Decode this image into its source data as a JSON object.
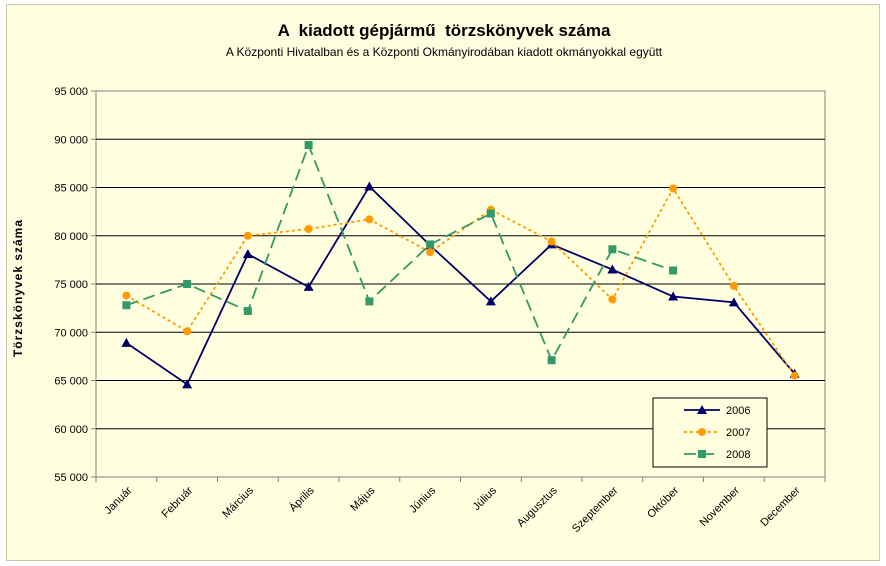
{
  "chart_data": {
    "type": "line",
    "title": "A  kiadott gépjármű  törzskönyvek száma",
    "subtitle": "A Központi Hivatalban és a Központi Okmányirodában kiadott okmányokkal együtt",
    "ylabel": "Törzskönyvek száma",
    "xlabel": "",
    "ylim": [
      55000,
      95000
    ],
    "yticks": [
      55000,
      60000,
      65000,
      70000,
      75000,
      80000,
      85000,
      90000,
      95000
    ],
    "ytick_labels": [
      "55 000",
      "60 000",
      "65 000",
      "70 000",
      "75 000",
      "80 000",
      "85 000",
      "90 000",
      "95 000"
    ],
    "categories": [
      "Január",
      "Február",
      "Március",
      "Április",
      "Május",
      "Június",
      "Július",
      "Augusztus",
      "Szeptember",
      "Október",
      "November",
      "December"
    ],
    "grid": "horizontal",
    "legend_position": "bottom-right",
    "series": [
      {
        "name": "2006",
        "color": "#000066",
        "dash": "solid",
        "marker": "triangle",
        "values": [
          68900,
          64600,
          78100,
          74700,
          85100,
          79000,
          73200,
          79100,
          76500,
          73700,
          73100,
          65700
        ]
      },
      {
        "name": "2007",
        "color": "#ff9900",
        "dash": "dotted",
        "marker": "circle",
        "values": [
          73800,
          70100,
          80000,
          80700,
          81700,
          78300,
          82700,
          79400,
          73400,
          84900,
          74800,
          65500
        ]
      },
      {
        "name": "2008",
        "color": "#339966",
        "dash": "dashed",
        "marker": "square",
        "values": [
          72800,
          75000,
          72200,
          89400,
          73200,
          79100,
          82300,
          67100,
          78600,
          76400,
          null,
          null
        ]
      }
    ]
  }
}
